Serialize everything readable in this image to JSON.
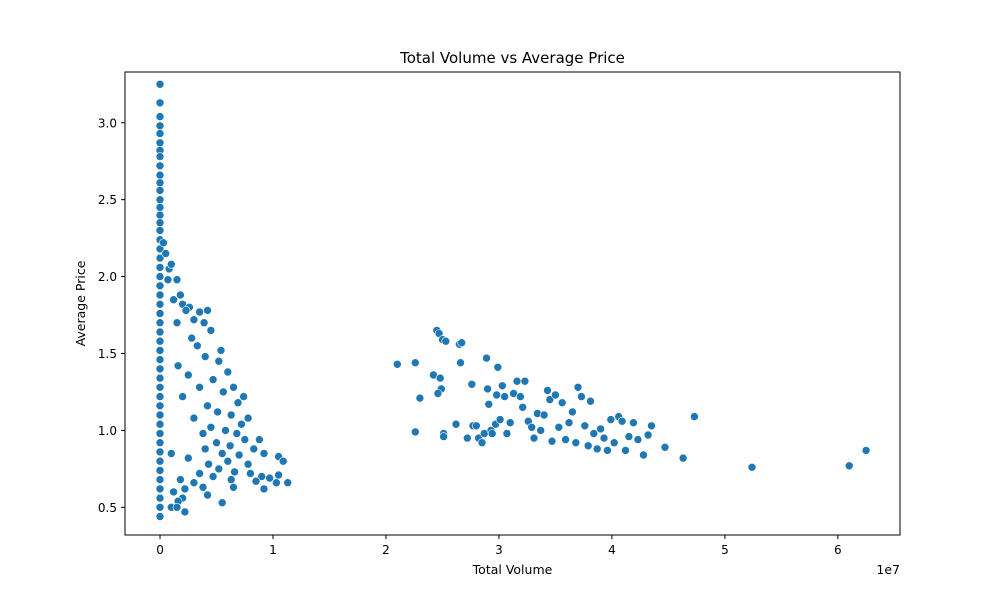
{
  "chart_data": {
    "type": "scatter",
    "title": "Total Volume vs Average Price",
    "xlabel": "Total Volume",
    "ylabel": "Average Price",
    "x_offset_label": "1e7",
    "xlim": [
      -3100000,
      65500000
    ],
    "ylim": [
      0.32,
      3.33
    ],
    "x_ticks": [
      0,
      10000000,
      20000000,
      30000000,
      40000000,
      50000000,
      60000000
    ],
    "x_tick_labels": [
      "0",
      "1",
      "2",
      "3",
      "4",
      "5",
      "6"
    ],
    "y_ticks": [
      0.5,
      1.0,
      1.5,
      2.0,
      2.5,
      3.0
    ],
    "y_tick_labels": [
      "0.5",
      "1.0",
      "1.5",
      "2.0",
      "2.5",
      "3.0"
    ],
    "grid": false,
    "legend": "none",
    "marker_color": "#1f77b4",
    "marker_edge_color": "#ffffff",
    "points": [
      [
        0,
        3.25
      ],
      [
        0,
        3.13
      ],
      [
        0,
        3.04
      ],
      [
        0,
        2.98
      ],
      [
        0,
        2.93
      ],
      [
        0,
        2.87
      ],
      [
        0,
        2.82
      ],
      [
        0,
        2.78
      ],
      [
        0,
        2.72
      ],
      [
        0,
        2.66
      ],
      [
        0,
        2.61
      ],
      [
        0,
        2.56
      ],
      [
        0,
        2.5
      ],
      [
        0,
        2.45
      ],
      [
        0,
        2.4
      ],
      [
        0,
        2.35
      ],
      [
        0,
        2.3
      ],
      [
        0,
        2.24
      ],
      [
        0,
        2.18
      ],
      [
        0,
        2.12
      ],
      [
        0,
        2.06
      ],
      [
        0,
        2.0
      ],
      [
        0,
        1.94
      ],
      [
        0,
        1.88
      ],
      [
        0,
        1.82
      ],
      [
        0,
        1.76
      ],
      [
        0,
        1.7
      ],
      [
        0,
        1.64
      ],
      [
        0,
        1.58
      ],
      [
        0,
        1.52
      ],
      [
        0,
        1.46
      ],
      [
        0,
        1.4
      ],
      [
        0,
        1.34
      ],
      [
        0,
        1.28
      ],
      [
        0,
        1.22
      ],
      [
        0,
        1.16
      ],
      [
        0,
        1.1
      ],
      [
        0,
        1.04
      ],
      [
        0,
        0.98
      ],
      [
        0,
        0.92
      ],
      [
        0,
        0.86
      ],
      [
        0,
        0.8
      ],
      [
        0,
        0.74
      ],
      [
        0,
        0.68
      ],
      [
        0,
        0.62
      ],
      [
        0,
        0.56
      ],
      [
        0,
        0.5
      ],
      [
        0,
        0.44
      ],
      [
        300000,
        2.22
      ],
      [
        500000,
        2.15
      ],
      [
        800000,
        2.05
      ],
      [
        1000000,
        2.08
      ],
      [
        700000,
        1.98
      ],
      [
        1500000,
        1.98
      ],
      [
        1800000,
        1.88
      ],
      [
        2000000,
        1.82
      ],
      [
        2600000,
        1.8
      ],
      [
        1200000,
        1.85
      ],
      [
        2300000,
        1.78
      ],
      [
        3500000,
        1.77
      ],
      [
        4200000,
        1.78
      ],
      [
        3000000,
        1.72
      ],
      [
        3900000,
        1.7
      ],
      [
        1500000,
        1.7
      ],
      [
        4500000,
        1.65
      ],
      [
        2800000,
        1.6
      ],
      [
        3300000,
        1.55
      ],
      [
        5400000,
        1.52
      ],
      [
        4000000,
        1.48
      ],
      [
        5200000,
        1.45
      ],
      [
        1600000,
        1.42
      ],
      [
        6000000,
        1.38
      ],
      [
        2500000,
        1.36
      ],
      [
        4700000,
        1.33
      ],
      [
        6500000,
        1.28
      ],
      [
        3500000,
        1.28
      ],
      [
        5600000,
        1.25
      ],
      [
        7400000,
        1.22
      ],
      [
        2000000,
        1.22
      ],
      [
        6900000,
        1.18
      ],
      [
        4200000,
        1.16
      ],
      [
        5100000,
        1.12
      ],
      [
        6300000,
        1.1
      ],
      [
        7800000,
        1.08
      ],
      [
        3000000,
        1.08
      ],
      [
        7200000,
        1.04
      ],
      [
        4500000,
        1.02
      ],
      [
        5800000,
        1.0
      ],
      [
        6800000,
        0.98
      ],
      [
        3800000,
        0.98
      ],
      [
        8800000,
        0.94
      ],
      [
        7500000,
        0.94
      ],
      [
        5000000,
        0.92
      ],
      [
        6200000,
        0.9
      ],
      [
        8300000,
        0.88
      ],
      [
        9200000,
        0.85
      ],
      [
        4000000,
        0.88
      ],
      [
        5500000,
        0.85
      ],
      [
        7000000,
        0.84
      ],
      [
        1000000,
        0.85
      ],
      [
        2500000,
        0.82
      ],
      [
        6000000,
        0.8
      ],
      [
        7800000,
        0.78
      ],
      [
        4300000,
        0.78
      ],
      [
        5200000,
        0.75
      ],
      [
        8000000,
        0.72
      ],
      [
        6600000,
        0.73
      ],
      [
        3500000,
        0.72
      ],
      [
        9000000,
        0.7
      ],
      [
        6300000,
        0.68
      ],
      [
        4700000,
        0.7
      ],
      [
        1800000,
        0.68
      ],
      [
        8500000,
        0.67
      ],
      [
        3000000,
        0.66
      ],
      [
        6500000,
        0.63
      ],
      [
        3800000,
        0.63
      ],
      [
        9200000,
        0.62
      ],
      [
        2200000,
        0.62
      ],
      [
        1200000,
        0.6
      ],
      [
        4200000,
        0.58
      ],
      [
        2000000,
        0.56
      ],
      [
        1600000,
        0.54
      ],
      [
        5500000,
        0.53
      ],
      [
        2200000,
        0.47
      ],
      [
        1000000,
        0.5
      ],
      [
        1500000,
        0.5
      ],
      [
        10500000,
        0.83
      ],
      [
        10900000,
        0.8
      ],
      [
        10500000,
        0.71
      ],
      [
        10300000,
        0.66
      ],
      [
        11300000,
        0.66
      ],
      [
        9700000,
        0.69
      ],
      [
        21000000,
        1.43
      ],
      [
        22600000,
        1.44
      ],
      [
        23000000,
        1.21
      ],
      [
        22600000,
        0.99
      ],
      [
        24200000,
        1.36
      ],
      [
        24500000,
        1.65
      ],
      [
        24700000,
        1.63
      ],
      [
        25000000,
        1.59
      ],
      [
        25300000,
        1.58
      ],
      [
        24800000,
        1.34
      ],
      [
        24900000,
        1.27
      ],
      [
        24600000,
        1.24
      ],
      [
        25100000,
        0.98
      ],
      [
        25100000,
        0.96
      ],
      [
        26200000,
        1.04
      ],
      [
        26500000,
        1.56
      ],
      [
        26700000,
        1.57
      ],
      [
        26600000,
        1.44
      ],
      [
        27200000,
        0.95
      ],
      [
        27600000,
        1.3
      ],
      [
        27700000,
        1.03
      ],
      [
        28000000,
        1.03
      ],
      [
        28200000,
        0.95
      ],
      [
        28500000,
        0.92
      ],
      [
        28700000,
        0.98
      ],
      [
        28900000,
        1.47
      ],
      [
        29000000,
        1.27
      ],
      [
        29100000,
        1.17
      ],
      [
        29300000,
        1.0
      ],
      [
        29400000,
        0.98
      ],
      [
        29700000,
        1.04
      ],
      [
        29900000,
        1.41
      ],
      [
        29800000,
        1.23
      ],
      [
        30100000,
        1.07
      ],
      [
        30300000,
        1.29
      ],
      [
        30500000,
        1.22
      ],
      [
        30700000,
        0.98
      ],
      [
        31000000,
        1.05
      ],
      [
        31300000,
        1.24
      ],
      [
        31600000,
        1.32
      ],
      [
        31900000,
        1.22
      ],
      [
        32100000,
        1.15
      ],
      [
        32300000,
        1.32
      ],
      [
        32600000,
        1.06
      ],
      [
        32900000,
        1.02
      ],
      [
        33100000,
        0.95
      ],
      [
        33400000,
        1.11
      ],
      [
        33700000,
        1.0
      ],
      [
        34000000,
        1.1
      ],
      [
        34300000,
        1.26
      ],
      [
        34500000,
        1.2
      ],
      [
        34700000,
        0.93
      ],
      [
        35000000,
        1.23
      ],
      [
        35300000,
        1.02
      ],
      [
        35600000,
        1.18
      ],
      [
        35900000,
        0.94
      ],
      [
        36200000,
        1.05
      ],
      [
        36500000,
        1.12
      ],
      [
        36800000,
        0.92
      ],
      [
        37000000,
        1.28
      ],
      [
        37300000,
        1.22
      ],
      [
        37600000,
        1.03
      ],
      [
        37900000,
        0.9
      ],
      [
        38100000,
        1.19
      ],
      [
        38400000,
        0.98
      ],
      [
        38700000,
        0.88
      ],
      [
        39000000,
        1.01
      ],
      [
        39300000,
        0.95
      ],
      [
        39600000,
        0.87
      ],
      [
        39900000,
        1.07
      ],
      [
        40200000,
        0.92
      ],
      [
        40600000,
        1.09
      ],
      [
        40900000,
        1.06
      ],
      [
        41200000,
        0.87
      ],
      [
        41500000,
        0.96
      ],
      [
        41900000,
        1.05
      ],
      [
        42300000,
        0.94
      ],
      [
        42800000,
        0.84
      ],
      [
        43200000,
        0.97
      ],
      [
        43500000,
        1.03
      ],
      [
        44700000,
        0.89
      ],
      [
        46300000,
        0.82
      ],
      [
        47300000,
        1.09
      ],
      [
        52400000,
        0.76
      ],
      [
        61000000,
        0.77
      ],
      [
        62500000,
        0.87
      ]
    ]
  }
}
